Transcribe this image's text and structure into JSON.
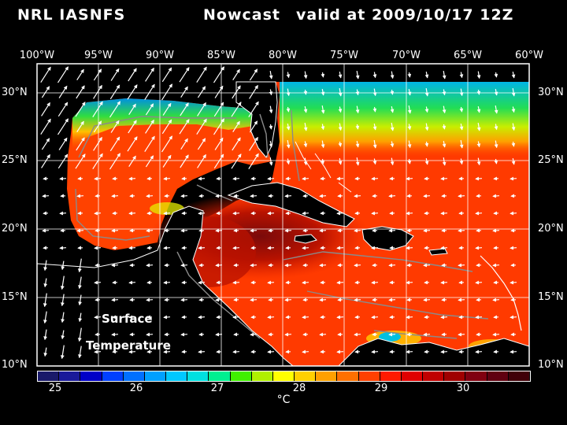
{
  "header": {
    "model": "NRL IASNFS",
    "product": "Nowcast",
    "valid": "valid at 2009/10/17 12Z"
  },
  "axes": {
    "lon_labels": [
      "100°W",
      "95°W",
      "90°W",
      "85°W",
      "80°W",
      "75°W",
      "70°W",
      "65°W",
      "60°W"
    ],
    "lat_labels": [
      "30°N",
      "25°N",
      "20°N",
      "15°N",
      "10°N"
    ]
  },
  "map": {
    "field_label_line1": "Surface",
    "field_label_line2": "Temperature",
    "colors": {
      "warm": "#ff3a00",
      "hot": "#d01400",
      "hottest": "#8a0a0a",
      "cool_green": "#33dd33",
      "cool_cyan": "#00c0e0",
      "land": "#000000",
      "coast": "#ffffff",
      "isobath": "#8a8a8a",
      "wind_arrow": "#ffffff"
    }
  },
  "colorbar": {
    "colors": [
      "#1a1a6a",
      "#1a1a9a",
      "#0000c8",
      "#0040ff",
      "#0070ff",
      "#00a0ff",
      "#00c8ff",
      "#00e0e0",
      "#00f090",
      "#40f000",
      "#b0f000",
      "#ffff00",
      "#ffd000",
      "#ffa000",
      "#ff7000",
      "#ff4000",
      "#ff1a00",
      "#e00000",
      "#c00000",
      "#a00000",
      "#800010",
      "#600010",
      "#400008"
    ],
    "ticks": [
      "25",
      "26",
      "27",
      "28",
      "29",
      "30"
    ],
    "unit": "°C"
  }
}
